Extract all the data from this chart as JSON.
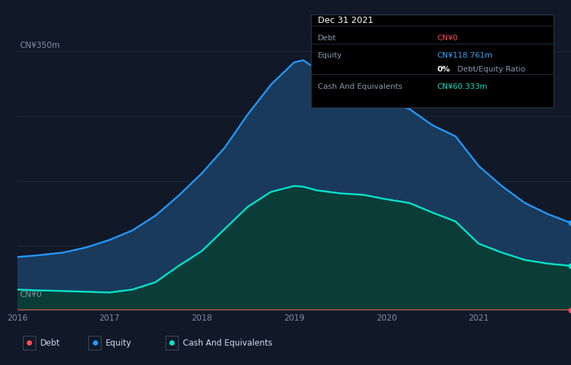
{
  "background_color": "#111827",
  "plot_bg_color": "#111827",
  "tooltip": {
    "date": "Dec 31 2021",
    "debt_label": "Debt",
    "debt_value": "CN¥0",
    "debt_color": "#ff4d4d",
    "equity_label": "Equity",
    "equity_value": "CN¥118.761m",
    "equity_color": "#33aaff",
    "ratio_text_bold": "0%",
    "ratio_text_normal": " Debt/Equity Ratio",
    "cash_label": "Cash And Equivalents",
    "cash_value": "CN¥60.333m",
    "cash_color": "#00e5cc"
  },
  "y_label_top": "CN¥350m",
  "y_label_bottom": "CN¥0",
  "x_ticks": [
    "2016",
    "2017",
    "2018",
    "2019",
    "2020",
    "2021"
  ],
  "equity_line_color": "#2299ff",
  "equity_fill_color": "#1a3a5c",
  "cash_line_color": "#00e5cc",
  "cash_fill_color": "#0a3d38",
  "debt_line_color": "#ff4d4d",
  "grid_color": "#1e2d3d",
  "legend": [
    {
      "label": "Debt",
      "color": "#ff4d4d"
    },
    {
      "label": "Equity",
      "color": "#2299ff"
    },
    {
      "label": "Cash And Equivalents",
      "color": "#00e5cc"
    }
  ],
  "years": [
    2016.0,
    2016.2,
    2016.5,
    2016.75,
    2017.0,
    2017.25,
    2017.5,
    2017.75,
    2018.0,
    2018.25,
    2018.5,
    2018.75,
    2019.0,
    2019.1,
    2019.25,
    2019.5,
    2019.75,
    2020.0,
    2020.25,
    2020.5,
    2020.75,
    2021.0,
    2021.25,
    2021.5,
    2021.75,
    2022.0
  ],
  "equity": [
    72,
    74,
    78,
    85,
    95,
    108,
    128,
    155,
    185,
    220,
    265,
    305,
    335,
    338,
    325,
    305,
    298,
    282,
    272,
    250,
    235,
    195,
    168,
    145,
    130,
    118
  ],
  "cash": [
    28,
    27,
    26,
    25,
    24,
    28,
    38,
    60,
    80,
    110,
    140,
    160,
    168,
    167,
    162,
    158,
    156,
    150,
    145,
    132,
    120,
    90,
    78,
    68,
    63,
    60
  ],
  "debt": [
    0,
    0,
    0,
    0,
    0,
    0,
    0,
    0,
    0,
    0,
    0,
    0,
    0,
    0,
    0,
    0,
    0,
    0,
    0,
    0,
    0,
    0,
    0,
    0,
    0,
    0
  ],
  "ylim": [
    0,
    370
  ],
  "xlim": [
    2016.0,
    2022.0
  ]
}
